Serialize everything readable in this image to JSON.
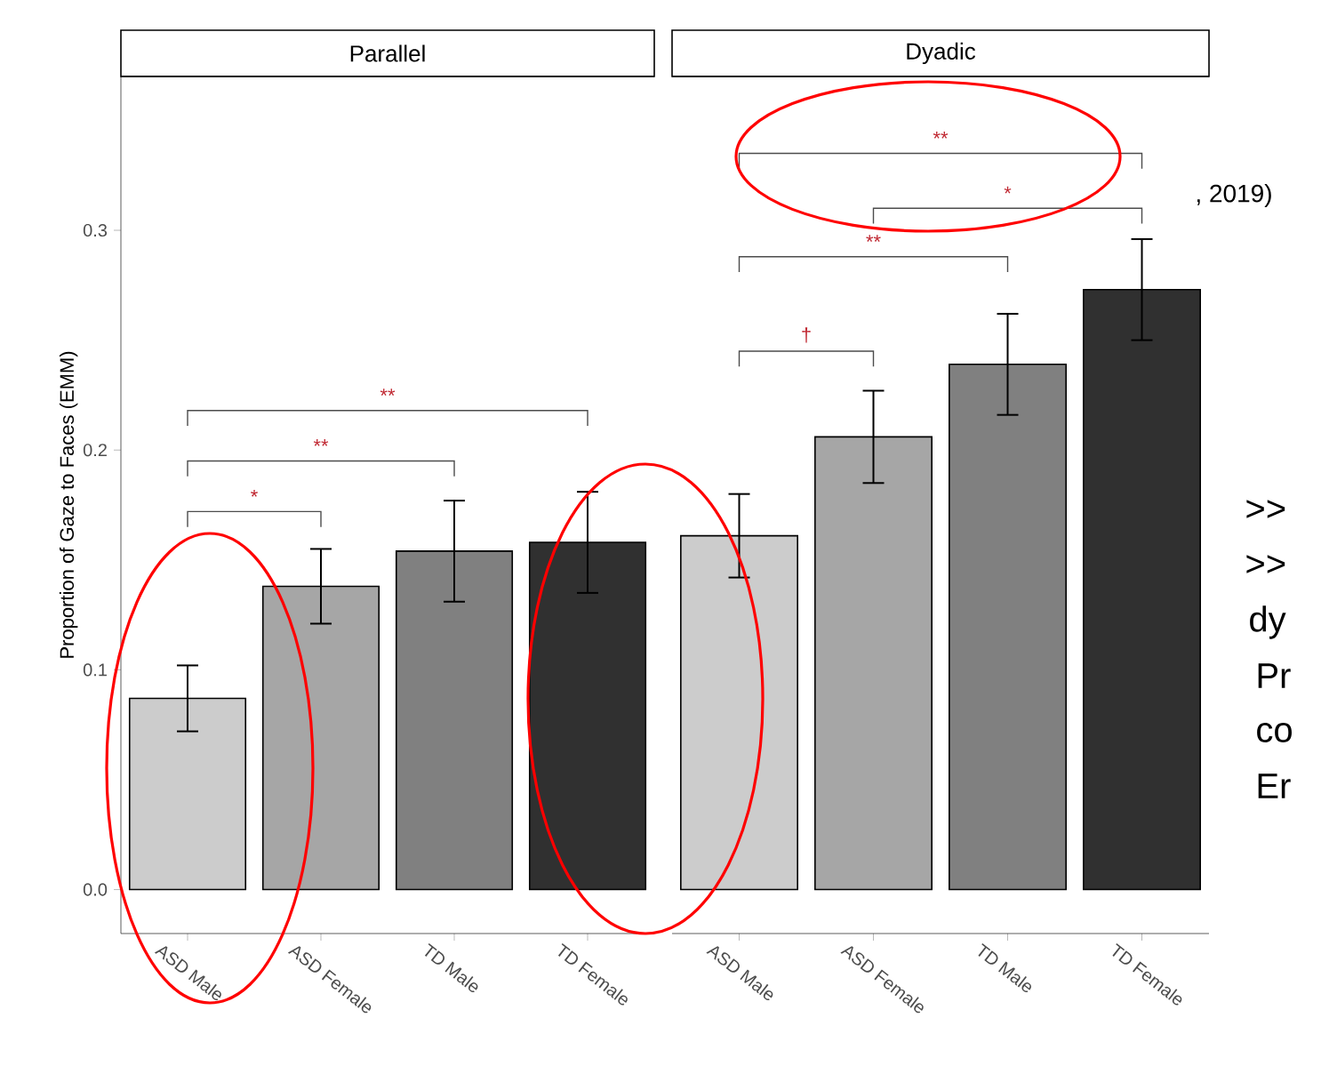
{
  "chart_data": [
    {
      "type": "bar",
      "title": "Parallel",
      "ylabel": "Proportion of Gaze to Faces (EMM)",
      "categories": [
        "ASD Male",
        "ASD Female",
        "TD Male",
        "TD Female"
      ],
      "values": [
        0.087,
        0.138,
        0.154,
        0.158
      ],
      "errors": [
        0.015,
        0.017,
        0.023,
        0.023
      ],
      "colors": [
        "#cccccc",
        "#a6a6a6",
        "#808080",
        "#303030"
      ],
      "ylim": [
        -0.02,
        0.37
      ],
      "yticks": [
        {
          "value": 0,
          "label": "0.0"
        },
        {
          "value": 0.1,
          "label": "0.1"
        },
        {
          "value": 0.2,
          "label": "0.2"
        },
        {
          "value": 0.3,
          "label": "0.3"
        }
      ],
      "annotations": [
        "**",
        "**",
        "*"
      ]
    },
    {
      "type": "bar",
      "title": "Dyadic",
      "categories": [
        "ASD Male",
        "ASD Female",
        "TD Male",
        "TD Female"
      ],
      "values": [
        0.161,
        0.206,
        0.239,
        0.273
      ],
      "errors": [
        0.019,
        0.021,
        0.023,
        0.023
      ],
      "colors": [
        "#cccccc",
        "#a6a6a6",
        "#808080",
        "#303030"
      ],
      "ylim": [
        -0.02,
        0.37
      ],
      "tick_labels": "x",
      "annotations": [
        "**",
        "*",
        "**",
        "†"
      ]
    },
    {
      "type": "other",
      "annotations": [
        ", 2019)",
        ">>",
        ">>",
        "dy",
        "Pr",
        "co",
        "Er"
      ]
    }
  ]
}
